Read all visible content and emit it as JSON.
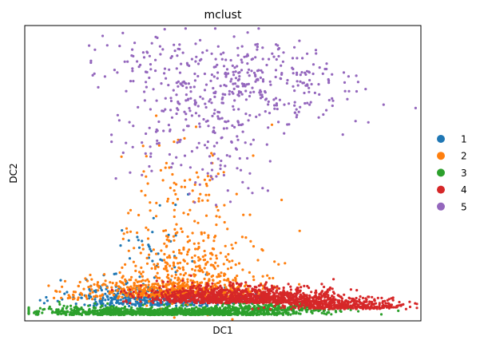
{
  "chart_data": {
    "type": "scatter",
    "title": "mclust",
    "xlabel": "DC1",
    "ylabel": "DC2",
    "xlim": [
      0,
      100
    ],
    "ylim": [
      0,
      100
    ],
    "xticks": "none",
    "yticks": "none",
    "grid": false,
    "legend": {
      "placement": "right",
      "entries": [
        {
          "label": "1",
          "color": "#1f77b4"
        },
        {
          "label": "2",
          "color": "#ff7f0e"
        },
        {
          "label": "3",
          "color": "#2ca02c"
        },
        {
          "label": "4",
          "color": "#d62728"
        },
        {
          "label": "5",
          "color": "#9467bd"
        }
      ]
    },
    "series": [
      {
        "name": "1",
        "color": "#1f77b4",
        "density": [
          {
            "cx": 30,
            "cy": 5,
            "sx": 10,
            "sy": 2.2,
            "n": 260
          },
          {
            "cx": 22,
            "cy": 8,
            "sx": 6,
            "sy": 3,
            "n": 60
          },
          {
            "cx": 33,
            "cy": 22,
            "sx": 5,
            "sy": 10,
            "n": 40
          },
          {
            "cx": 48,
            "cy": 6,
            "sx": 9,
            "sy": 2.2,
            "n": 70
          }
        ]
      },
      {
        "name": "2",
        "color": "#ff7f0e",
        "density": [
          {
            "cx": 38,
            "cy": 8,
            "sx": 10,
            "sy": 3.2,
            "n": 560
          },
          {
            "cx": 43,
            "cy": 17,
            "sx": 8,
            "sy": 7,
            "n": 230
          },
          {
            "cx": 40,
            "cy": 38,
            "sx": 9,
            "sy": 13,
            "n": 140
          },
          {
            "cx": 15,
            "cy": 7,
            "sx": 6,
            "sy": 3,
            "n": 50
          }
        ]
      },
      {
        "name": "3",
        "color": "#2ca02c",
        "density": [
          {
            "cx": 40,
            "cy": 2,
            "sx": 16,
            "sy": 1.1,
            "n": 1000
          },
          {
            "cx": 18,
            "cy": 2.5,
            "sx": 6,
            "sy": 1.2,
            "n": 140
          },
          {
            "cx": 62,
            "cy": 3.5,
            "sx": 8,
            "sy": 1.2,
            "n": 200
          }
        ]
      },
      {
        "name": "4",
        "color": "#d62728",
        "density": [
          {
            "cx": 58,
            "cy": 6,
            "sx": 12,
            "sy": 2.6,
            "n": 900
          },
          {
            "cx": 78,
            "cy": 4,
            "sx": 7,
            "sy": 1.8,
            "n": 330
          },
          {
            "cx": 42,
            "cy": 6.5,
            "sx": 7,
            "sy": 3,
            "n": 230
          },
          {
            "cx": 90,
            "cy": 4,
            "sx": 4,
            "sy": 1.5,
            "n": 60
          }
        ]
      },
      {
        "name": "5",
        "color": "#9467bd",
        "density": [
          {
            "cx": 58,
            "cy": 80,
            "sx": 12,
            "sy": 7,
            "n": 300
          },
          {
            "cx": 43,
            "cy": 70,
            "sx": 10,
            "sy": 12,
            "n": 170
          },
          {
            "cx": 30,
            "cy": 90,
            "sx": 7,
            "sy": 4,
            "n": 40
          },
          {
            "cx": 50,
            "cy": 52,
            "sx": 6,
            "sy": 6,
            "n": 40
          }
        ]
      }
    ]
  }
}
